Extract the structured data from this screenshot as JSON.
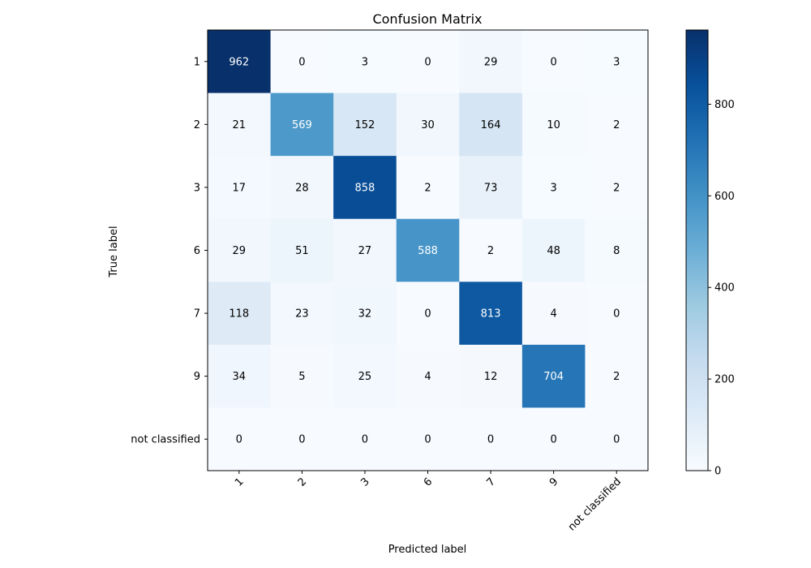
{
  "chart_data": {
    "type": "heatmap",
    "title": "Confusion Matrix",
    "xlabel": "Predicted label",
    "ylabel": "True label",
    "x_categories": [
      "1",
      "2",
      "3",
      "6",
      "7",
      "9",
      "not classified"
    ],
    "y_categories": [
      "1",
      "2",
      "3",
      "6",
      "7",
      "9",
      "not classified"
    ],
    "matrix": [
      [
        962,
        0,
        3,
        0,
        29,
        0,
        3
      ],
      [
        21,
        569,
        152,
        30,
        164,
        10,
        2
      ],
      [
        17,
        28,
        858,
        2,
        73,
        3,
        2
      ],
      [
        29,
        51,
        27,
        588,
        2,
        48,
        8
      ],
      [
        118,
        23,
        32,
        0,
        813,
        4,
        0
      ],
      [
        34,
        5,
        25,
        4,
        12,
        704,
        2
      ],
      [
        0,
        0,
        0,
        0,
        0,
        0,
        0
      ]
    ],
    "colorbar": {
      "min": 0,
      "max": 962,
      "ticks": [
        0,
        200,
        400,
        600,
        800
      ]
    },
    "colormap": "Blues",
    "text_threshold": 481,
    "text_colors": {
      "light": "#ffffff",
      "dark": "#000000"
    }
  }
}
